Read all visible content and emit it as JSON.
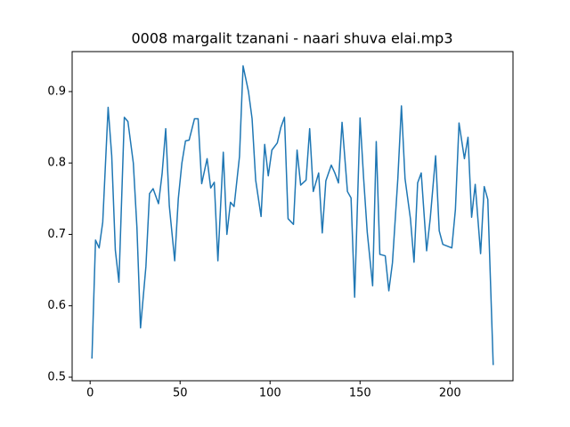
{
  "chart_data": {
    "type": "line",
    "title": "0008 margalit tzanani - naari shuva elai.mp3",
    "x": [
      1,
      3,
      5,
      7,
      10,
      12,
      14,
      16,
      19,
      21,
      24,
      26,
      28,
      31,
      33,
      35,
      38,
      40,
      42,
      44,
      47,
      49,
      51,
      53,
      55,
      58,
      60,
      62,
      65,
      67,
      69,
      71,
      74,
      76,
      78,
      80,
      83,
      85,
      88,
      90,
      92,
      95,
      97,
      99,
      101,
      104,
      106,
      108,
      110,
      113,
      115,
      117,
      120,
      122,
      124,
      127,
      129,
      131,
      134,
      136,
      138,
      140,
      143,
      145,
      147,
      150,
      152,
      154,
      157,
      159,
      161,
      164,
      166,
      168,
      171,
      173,
      175,
      178,
      180,
      182,
      184,
      187,
      189,
      192,
      194,
      196,
      201,
      203,
      205,
      208,
      210,
      212,
      214,
      217,
      219,
      221,
      224
    ],
    "series": [
      {
        "color": "#1f77b4",
        "values": [
          0.526,
          0.692,
          0.681,
          0.717,
          0.878,
          0.81,
          0.678,
          0.633,
          0.864,
          0.858,
          0.8,
          0.71,
          0.569,
          0.655,
          0.757,
          0.764,
          0.743,
          0.785,
          0.848,
          0.74,
          0.663,
          0.75,
          0.8,
          0.831,
          0.832,
          0.862,
          0.862,
          0.771,
          0.806,
          0.765,
          0.773,
          0.663,
          0.815,
          0.7,
          0.745,
          0.739,
          0.809,
          0.936,
          0.9,
          0.862,
          0.776,
          0.725,
          0.826,
          0.782,
          0.818,
          0.828,
          0.85,
          0.864,
          0.722,
          0.714,
          0.818,
          0.769,
          0.776,
          0.848,
          0.76,
          0.786,
          0.702,
          0.775,
          0.797,
          0.786,
          0.772,
          0.857,
          0.76,
          0.751,
          0.612,
          0.863,
          0.778,
          0.703,
          0.628,
          0.83,
          0.672,
          0.67,
          0.621,
          0.66,
          0.778,
          0.88,
          0.778,
          0.722,
          0.661,
          0.772,
          0.786,
          0.677,
          0.722,
          0.81,
          0.705,
          0.686,
          0.681,
          0.735,
          0.856,
          0.806,
          0.836,
          0.724,
          0.77,
          0.673,
          0.767,
          0.749,
          0.517
        ]
      }
    ],
    "xlim": [
      -10,
      235
    ],
    "ylim": [
      0.495,
      0.956
    ],
    "xticks": [
      0,
      50,
      100,
      150,
      200
    ],
    "yticks": [
      0.5,
      0.6,
      0.7,
      0.8,
      0.9
    ]
  }
}
